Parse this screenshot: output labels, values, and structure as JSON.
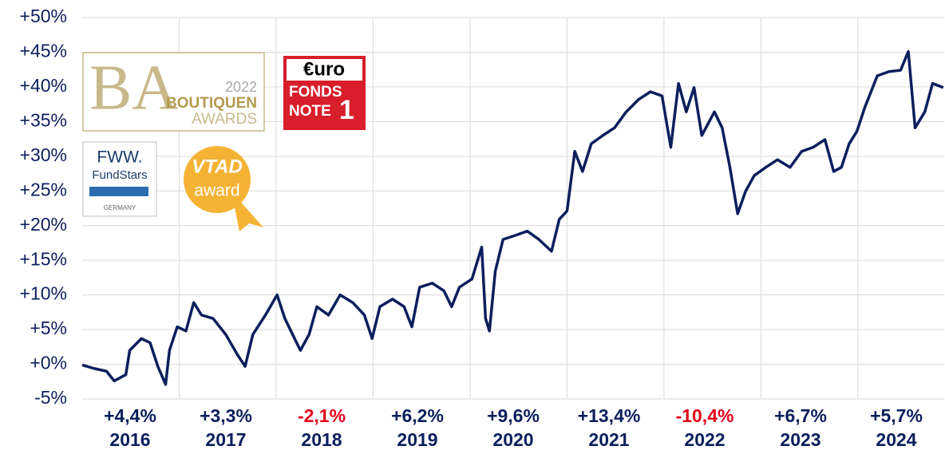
{
  "chart_data": {
    "type": "line",
    "x": [
      2016.0,
      2016.12,
      2016.25,
      2016.33,
      2016.45,
      2016.49,
      2016.61,
      2016.7,
      2016.78,
      2016.86,
      2016.9,
      2016.98,
      2017.07,
      2017.15,
      2017.23,
      2017.35,
      2017.48,
      2017.6,
      2017.68,
      2017.76,
      2017.89,
      2018.01,
      2018.09,
      2018.17,
      2018.25,
      2018.34,
      2018.42,
      2018.54,
      2018.66,
      2018.79,
      2018.91,
      2018.99,
      2019.07,
      2019.2,
      2019.32,
      2019.4,
      2019.48,
      2019.61,
      2019.73,
      2019.81,
      2019.89,
      2020.02,
      2020.12,
      2020.16,
      2020.2,
      2020.26,
      2020.34,
      2020.47,
      2020.59,
      2020.71,
      2020.84,
      2020.92,
      2021.0,
      2021.08,
      2021.16,
      2021.25,
      2021.37,
      2021.49,
      2021.61,
      2021.74,
      2021.86,
      2021.98,
      2022.07,
      2022.15,
      2022.23,
      2022.31,
      2022.39,
      2022.52,
      2022.6,
      2022.68,
      2022.76,
      2022.84,
      2022.93,
      2023.05,
      2023.17,
      2023.3,
      2023.42,
      2023.54,
      2023.66,
      2023.75,
      2023.83,
      2023.91,
      2023.99,
      2024.07,
      2024.2,
      2024.32,
      2024.44,
      2024.52,
      2024.59,
      2024.69,
      2024.77,
      2024.88
    ],
    "series": [
      {
        "color": "#0b1f5c",
        "values": [
          -0.1,
          -0.6,
          -1.0,
          -2.4,
          -1.5,
          2.0,
          3.7,
          3.1,
          -0.3,
          -2.9,
          2.0,
          5.4,
          4.8,
          8.9,
          7.1,
          6.6,
          4.3,
          1.4,
          -0.3,
          4.3,
          7.1,
          10.0,
          6.6,
          4.3,
          2.0,
          4.3,
          8.3,
          7.1,
          10.0,
          8.9,
          7.1,
          3.7,
          8.3,
          9.4,
          8.3,
          5.4,
          11.1,
          11.7,
          10.6,
          8.3,
          11.1,
          12.3,
          16.9,
          6.6,
          4.8,
          13.4,
          18.0,
          18.6,
          19.2,
          18.0,
          16.3,
          20.9,
          22.1,
          30.7,
          27.8,
          31.8,
          33.0,
          34.1,
          36.4,
          38.2,
          39.3,
          38.7,
          31.3,
          40.5,
          36.4,
          39.9,
          33.0,
          36.4,
          34.1,
          28.4,
          21.7,
          24.9,
          27.2,
          28.4,
          29.5,
          28.4,
          30.7,
          31.3,
          32.4,
          27.8,
          28.4,
          31.8,
          33.6,
          37.0,
          41.6,
          42.2,
          42.4,
          45.1,
          34.1,
          36.4,
          40.5,
          39.9
        ]
      }
    ],
    "xlim": [
      2016,
      2024.89
    ],
    "xgrid": [
      2017,
      2018,
      2019,
      2020,
      2021,
      2022,
      2023,
      2024
    ],
    "ylim": [
      -5,
      50
    ],
    "yticks": [
      {
        "value": -5,
        "label": "-5%"
      },
      {
        "value": 0,
        "label": "+0%"
      },
      {
        "value": 5,
        "label": "+5%"
      },
      {
        "value": 10,
        "label": "+10%"
      },
      {
        "value": 15,
        "label": "+15%"
      },
      {
        "value": 20,
        "label": "+20%"
      },
      {
        "value": 25,
        "label": "+25%"
      },
      {
        "value": 30,
        "label": "+30%"
      },
      {
        "value": 35,
        "label": "+35%"
      },
      {
        "value": 40,
        "label": "+40%"
      },
      {
        "value": 45,
        "label": "+45%"
      },
      {
        "value": 50,
        "label": "+50%"
      }
    ],
    "grid": true,
    "annual": {
      "categories": [
        "2016",
        "2017",
        "2018",
        "2019",
        "2020",
        "2021",
        "2022",
        "2023",
        "2024"
      ],
      "values": [
        4.4,
        3.3,
        -2.1,
        6.2,
        9.6,
        13.4,
        -10.4,
        6.7,
        5.7
      ],
      "value_labels": [
        "+4,4%",
        "+3,3%",
        "-2,1%",
        "+6,2%",
        "+9,6%",
        "+13,4%",
        "-10,4%",
        "+6,7%",
        "+5,7%"
      ],
      "color": "#0b1f5c",
      "negative_color": "#e3001b"
    }
  },
  "logos": {
    "boutiquen": {
      "year": "2022",
      "line1": "BOUTIQUEN",
      "line2": "AWARDS"
    },
    "euro": {
      "brand": "€uro",
      "line1": "FONDS",
      "line2": "NOTE",
      "grade": "1"
    },
    "fww": {
      "brand": "FWW.",
      "line1": "FundStars",
      "country": "GERMANY"
    },
    "vtad": {
      "brand": "VTAD",
      "line1": "award"
    }
  }
}
